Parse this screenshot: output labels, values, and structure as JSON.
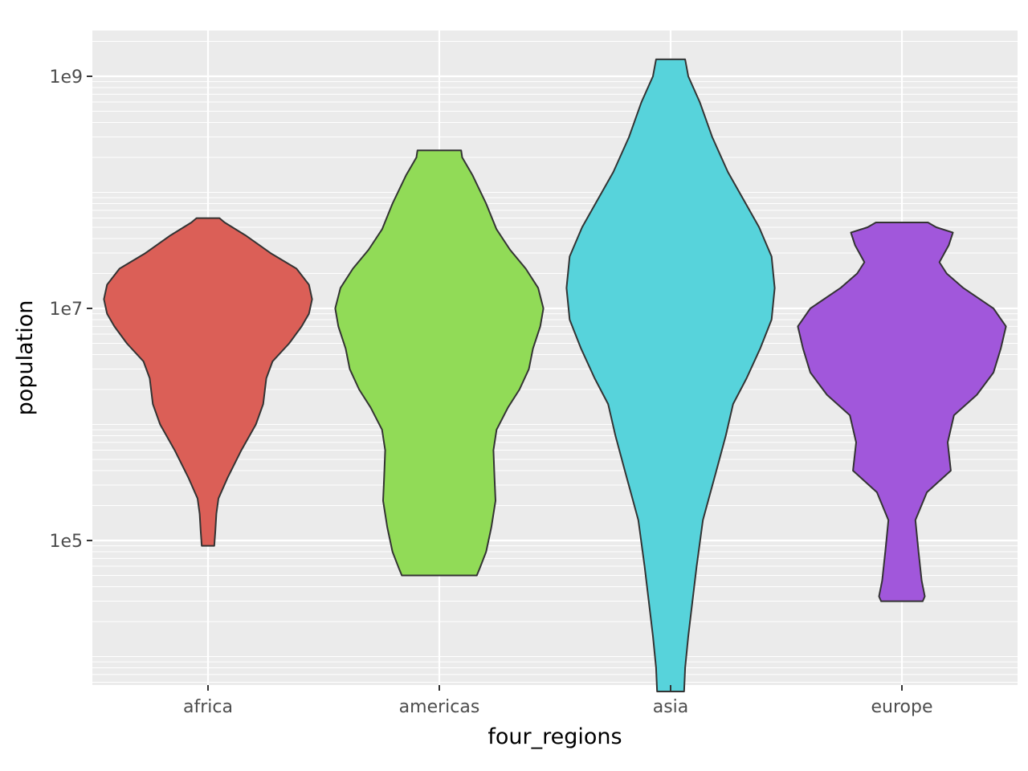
{
  "chart_data": {
    "type": "violin",
    "title": "",
    "xlabel": "four_regions",
    "ylabel": "population",
    "y_scale": "log10",
    "ylim": [
      4000,
      2400000000
    ],
    "y_major_ticks": [
      {
        "value": 100000,
        "label": "1e5"
      },
      {
        "value": 10000000,
        "label": "1e7"
      },
      {
        "value": 1000000000,
        "label": "1e9"
      }
    ],
    "grid": true,
    "legend": "none",
    "categories": [
      "africa",
      "americas",
      "asia",
      "europe"
    ],
    "colors": {
      "africa": "#db5f57",
      "americas": "#91db57",
      "asia": "#57d3db",
      "europe": "#a157db"
    },
    "series": [
      {
        "category": "africa",
        "min": 90000,
        "max": 60000000,
        "density_profile": [
          [
            90000,
            0.06
          ],
          [
            120000,
            0.07
          ],
          [
            170000,
            0.08
          ],
          [
            230000,
            0.1
          ],
          [
            350000,
            0.19
          ],
          [
            600000,
            0.32
          ],
          [
            1000000,
            0.46
          ],
          [
            1500000,
            0.53
          ],
          [
            2500000,
            0.56
          ],
          [
            3500000,
            0.62
          ],
          [
            5000000,
            0.78
          ],
          [
            7000000,
            0.9
          ],
          [
            9000000,
            0.97
          ],
          [
            12000000,
            1.0
          ],
          [
            16000000,
            0.97
          ],
          [
            22000000,
            0.85
          ],
          [
            30000000,
            0.6
          ],
          [
            42000000,
            0.37
          ],
          [
            55000000,
            0.16
          ],
          [
            60000000,
            0.11
          ]
        ]
      },
      {
        "category": "americas",
        "min": 50000,
        "max": 230000000,
        "density_profile": [
          [
            50000,
            0.36
          ],
          [
            58000,
            0.39
          ],
          [
            80000,
            0.45
          ],
          [
            130000,
            0.5
          ],
          [
            220000,
            0.54
          ],
          [
            350000,
            0.53
          ],
          [
            600000,
            0.52
          ],
          [
            900000,
            0.55
          ],
          [
            1400000,
            0.66
          ],
          [
            2000000,
            0.77
          ],
          [
            3000000,
            0.86
          ],
          [
            4500000,
            0.9
          ],
          [
            7000000,
            0.97
          ],
          [
            10000000,
            1.0
          ],
          [
            15000000,
            0.95
          ],
          [
            22000000,
            0.83
          ],
          [
            32000000,
            0.68
          ],
          [
            48000000,
            0.55
          ],
          [
            80000000,
            0.45
          ],
          [
            140000000,
            0.32
          ],
          [
            200000000,
            0.22
          ],
          [
            230000000,
            0.21
          ]
        ]
      },
      {
        "category": "asia",
        "min": 5000,
        "max": 1400000000,
        "density_profile": [
          [
            5000,
            0.13
          ],
          [
            8000,
            0.14
          ],
          [
            15000,
            0.17
          ],
          [
            30000,
            0.21
          ],
          [
            60000,
            0.25
          ],
          [
            150000,
            0.31
          ],
          [
            400000,
            0.44
          ],
          [
            800000,
            0.53
          ],
          [
            1500000,
            0.6
          ],
          [
            2500000,
            0.73
          ],
          [
            4500000,
            0.86
          ],
          [
            8000000,
            0.97
          ],
          [
            15000000,
            1.0
          ],
          [
            28000000,
            0.97
          ],
          [
            50000000,
            0.85
          ],
          [
            90000000,
            0.69
          ],
          [
            150000000,
            0.55
          ],
          [
            300000000,
            0.4
          ],
          [
            600000000,
            0.28
          ],
          [
            1000000000,
            0.17
          ],
          [
            1400000000,
            0.14
          ]
        ]
      },
      {
        "category": "europe",
        "min": 30000,
        "max": 55000000,
        "density_profile": [
          [
            30000,
            0.2
          ],
          [
            33000,
            0.22
          ],
          [
            45000,
            0.19
          ],
          [
            80000,
            0.16
          ],
          [
            150000,
            0.13
          ],
          [
            260000,
            0.24
          ],
          [
            400000,
            0.47
          ],
          [
            700000,
            0.44
          ],
          [
            1200000,
            0.5
          ],
          [
            1800000,
            0.72
          ],
          [
            2800000,
            0.88
          ],
          [
            4500000,
            0.95
          ],
          [
            7000000,
            1.0
          ],
          [
            10000000,
            0.88
          ],
          [
            15000000,
            0.59
          ],
          [
            20000000,
            0.43
          ],
          [
            25000000,
            0.36
          ],
          [
            35000000,
            0.45
          ],
          [
            45000000,
            0.49
          ],
          [
            50000000,
            0.33
          ],
          [
            55000000,
            0.25
          ]
        ]
      }
    ]
  }
}
